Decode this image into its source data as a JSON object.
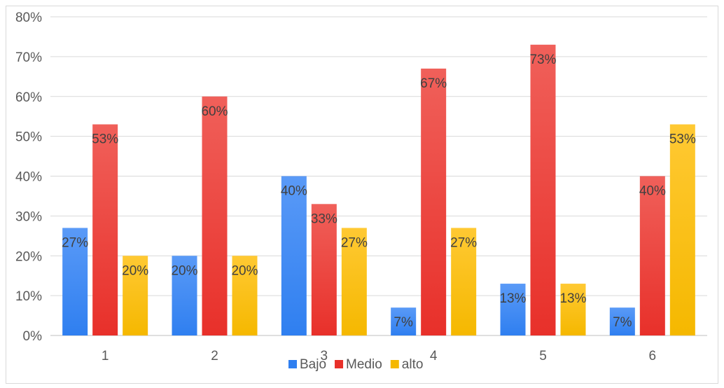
{
  "chart_data": {
    "type": "bar",
    "title": "",
    "xlabel": "",
    "ylabel": "",
    "categories": [
      "1",
      "2",
      "3",
      "4",
      "5",
      "6"
    ],
    "series": [
      {
        "name": "Bajo",
        "values": [
          0.27,
          0.2,
          0.4,
          0.07,
          0.13,
          0.07
        ],
        "labels": [
          "27%",
          "20%",
          "40%",
          "7%",
          "13%",
          "7%"
        ],
        "color": "#2f7ff0",
        "color_light": "#5a9af7"
      },
      {
        "name": "Medio",
        "values": [
          0.53,
          0.6,
          0.33,
          0.67,
          0.73,
          0.4
        ],
        "labels": [
          "53%",
          "60%",
          "33%",
          "67%",
          "73%",
          "40%"
        ],
        "color": "#e8302a",
        "color_light": "#f0605a"
      },
      {
        "name": "alto",
        "values": [
          0.2,
          0.2,
          0.27,
          0.27,
          0.13,
          0.53
        ],
        "labels": [
          "20%",
          "20%",
          "27%",
          "27%",
          "13%",
          "53%"
        ],
        "color": "#f5b800",
        "color_light": "#ffc933"
      }
    ],
    "ylim": [
      0,
      0.8
    ],
    "yticks": [
      0,
      0.1,
      0.2,
      0.3,
      0.4,
      0.5,
      0.6,
      0.7,
      0.8
    ],
    "ytick_labels": [
      "0%",
      "10%",
      "20%",
      "30%",
      "40%",
      "50%",
      "60%",
      "70%",
      "80%"
    ],
    "grid": true,
    "legend_position": "bottom"
  }
}
